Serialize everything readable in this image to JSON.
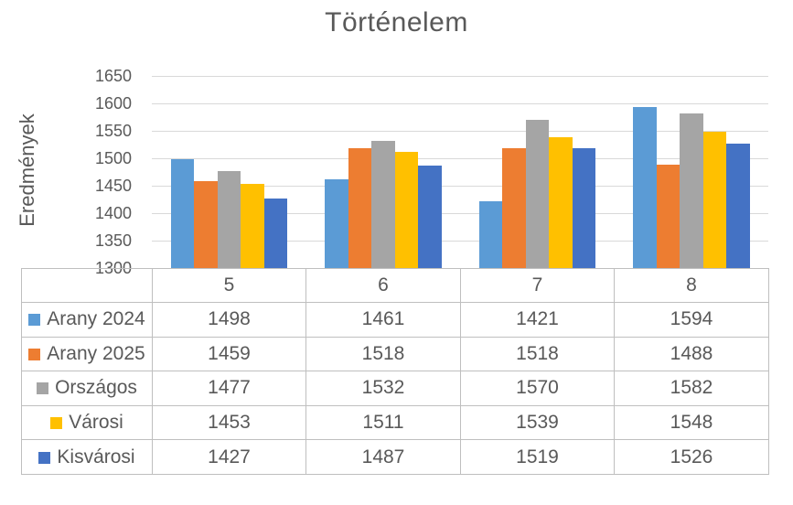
{
  "chart_data": {
    "type": "bar",
    "title": "Történelem",
    "ylabel": "Eredmények",
    "xlabel": "",
    "categories": [
      "5",
      "6",
      "7",
      "8"
    ],
    "series": [
      {
        "name": "Arany 2024",
        "color": "#5B9BD5",
        "values": [
          1498,
          1461,
          1421,
          1594
        ]
      },
      {
        "name": "Arany 2025",
        "color": "#ED7D31",
        "values": [
          1459,
          1518,
          1518,
          1488
        ]
      },
      {
        "name": "Országos",
        "color": "#A5A5A5",
        "values": [
          1477,
          1532,
          1570,
          1582
        ]
      },
      {
        "name": "Városi",
        "color": "#FFC000",
        "values": [
          1453,
          1511,
          1539,
          1548
        ]
      },
      {
        "name": "Kisvárosi",
        "color": "#4472C4",
        "values": [
          1427,
          1487,
          1519,
          1526
        ]
      }
    ],
    "ylim": [
      1300,
      1650
    ],
    "ytick_step": 50,
    "yticks": [
      1650,
      1600,
      1550,
      1500,
      1450,
      1400,
      1350,
      1300
    ],
    "grid": true,
    "legend_position": "data-table-left",
    "data_table": true
  },
  "style": {
    "text_color": "#595959",
    "gridline_color": "#D9D9D9",
    "table_border_color": "#BFBFBF",
    "background": "#FFFFFF"
  }
}
